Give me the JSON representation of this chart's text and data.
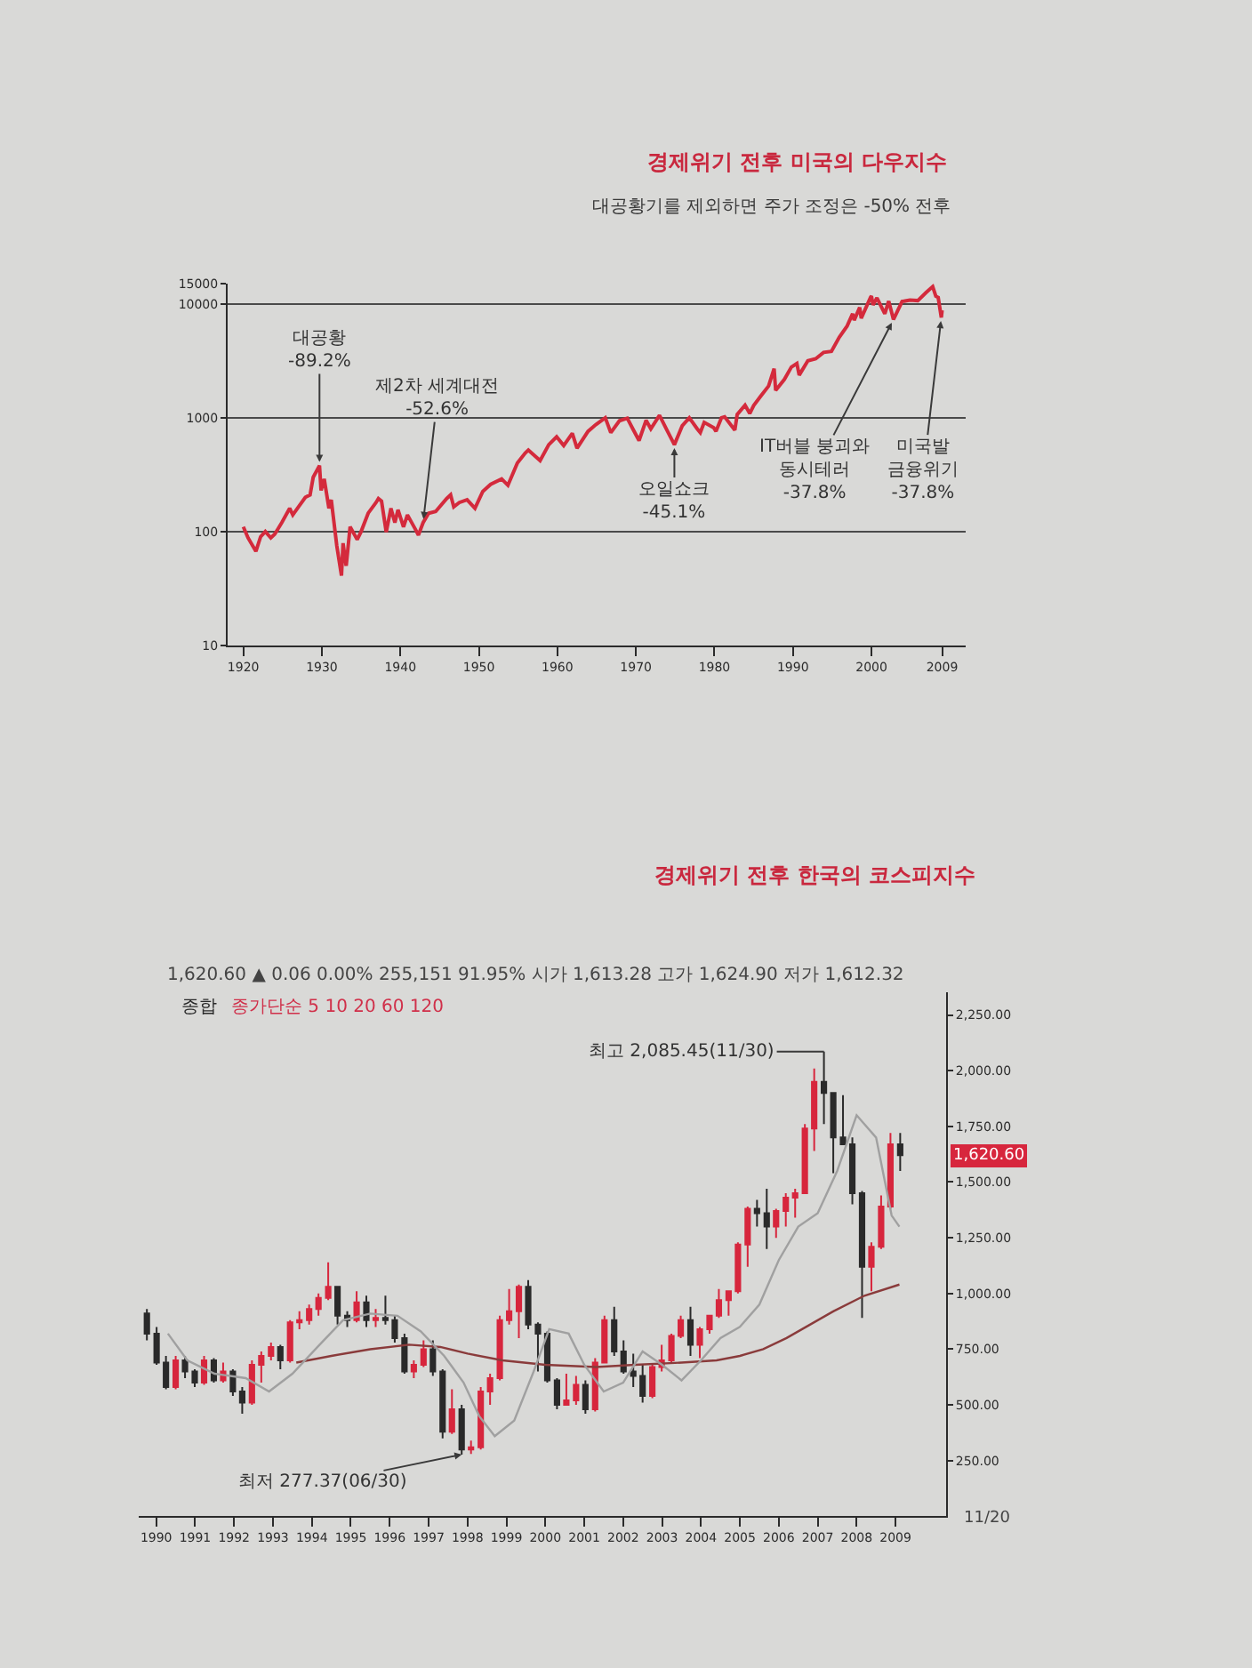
{
  "chart_data": [
    {
      "type": "line",
      "title": "경제위기 전후 미국의 다우지수",
      "subtitle": "대공황기를 제외하면 주가 조정은 -50% 전후",
      "color": "#d42a3c",
      "x": [
        1920.0,
        1920.6,
        1921.6,
        1922.2,
        1922.8,
        1923.5,
        1924.0,
        1924.9,
        1925.9,
        1926.3,
        1926.9,
        1927.9,
        1928.5,
        1928.9,
        1929.7,
        1929.9,
        1930.3,
        1930.9,
        1931.2,
        1931.9,
        1932.5,
        1932.7,
        1933.1,
        1933.6,
        1934.5,
        1935.0,
        1935.9,
        1936.9,
        1937.2,
        1937.6,
        1938.2,
        1938.8,
        1939.3,
        1939.7,
        1940.4,
        1940.9,
        1941.9,
        1942.3,
        1942.9,
        1943.6,
        1944.5,
        1945.9,
        1946.4,
        1946.8,
        1947.5,
        1948.5,
        1949.5,
        1950.5,
        1951.5,
        1952.9,
        1953.7,
        1954.9,
        1955.9,
        1956.3,
        1957.8,
        1958.9,
        1959.9,
        1960.8,
        1961.9,
        1962.5,
        1963.9,
        1964.9,
        1966.1,
        1966.8,
        1967.9,
        1968.9,
        1969.6,
        1970.4,
        1971.3,
        1971.9,
        1973.0,
        1973.9,
        1974.9,
        1975.9,
        1976.8,
        1977.8,
        1978.2,
        1978.7,
        1979.9,
        1980.2,
        1980.9,
        1981.3,
        1982.6,
        1982.9,
        1983.9,
        1984.5,
        1985.0,
        1985.9,
        1986.9,
        1987.6,
        1987.8,
        1988.9,
        1989.8,
        1990.5,
        1990.8,
        1991.9,
        1992.9,
        1993.9,
        1994.9,
        1995.9,
        1996.9,
        1997.6,
        1997.8,
        1998.5,
        1998.7,
        1999.9,
        2000.0,
        2000.2,
        2000.7,
        2001.7,
        2002.2,
        2002.8,
        2003.9,
        2004.9,
        2005.9,
        2006.9,
        2007.8,
        2008.2,
        2008.5,
        2008.9,
        2009.0
      ],
      "values": [
        110,
        88,
        67,
        90,
        100,
        88,
        95,
        120,
        160,
        140,
        160,
        200,
        210,
        300,
        380,
        230,
        290,
        160,
        190,
        75,
        41,
        79,
        50,
        110,
        85,
        100,
        145,
        180,
        195,
        185,
        99,
        160,
        120,
        155,
        110,
        140,
        105,
        93,
        120,
        145,
        150,
        195,
        210,
        165,
        180,
        190,
        160,
        225,
        260,
        290,
        255,
        400,
        490,
        520,
        420,
        580,
        680,
        570,
        730,
        540,
        760,
        870,
        1000,
        740,
        940,
        990,
        800,
        630,
        950,
        800,
        1050,
        790,
        580,
        850,
        1000,
        800,
        740,
        910,
        820,
        760,
        1000,
        1020,
        780,
        1070,
        1290,
        1090,
        1280,
        1550,
        1900,
        2700,
        1740,
        2170,
        2790,
        3000,
        2370,
        3170,
        3300,
        3750,
        3830,
        5100,
        6400,
        8200,
        7200,
        9300,
        7500,
        11500,
        11700,
        9800,
        11300,
        8200,
        10600,
        7300,
        10500,
        10800,
        10700,
        12500,
        14200,
        11700,
        11400,
        7600,
        8800
      ],
      "log": true,
      "xlim": [
        1918,
        2012
      ],
      "xticks": [
        1920,
        1930,
        1940,
        1950,
        1960,
        1970,
        1980,
        1990,
        2000,
        2009
      ],
      "ylim": [
        10,
        15000
      ],
      "yticks": [
        10,
        100,
        1000,
        10000,
        15000
      ],
      "grid": "y",
      "annotations": [
        {
          "text": "대공황\n-89.2%",
          "x": 1929.7,
          "y": 380
        },
        {
          "text": "제2차 세계대전\n-52.6%",
          "x": 1942.9,
          "y": 120
        },
        {
          "text": "오일쇼크\n-45.1%",
          "x": 1974.9,
          "y": 580
        },
        {
          "text": "IT버블 붕괴와\n동시테러\n-37.8%",
          "x": 2002.8,
          "y": 7300
        },
        {
          "text": "미국발\n금융위기\n-37.8%",
          "x": 2008.9,
          "y": 7600
        }
      ]
    },
    {
      "type": "candlestick",
      "title": "경제위기 전후 한국의 코스피지수",
      "series": [
        {
          "type": "candlestick",
          "colors": [
            "#2a2a2a",
            "#2a2a2a",
            "#2a2a2a",
            "#d7263d",
            "#2a2a2a",
            "#2a2a2a",
            "#d7263d",
            "#2a2a2a",
            "#d7263d",
            "#2a2a2a",
            "#2a2a2a",
            "#d7263d",
            "#d7263d",
            "#d7263d",
            "#2a2a2a",
            "#d7263d",
            "#d7263d",
            "#d7263d",
            "#d7263d",
            "#d7263d",
            "#2a2a2a",
            "#2a2a2a",
            "#d7263d",
            "#2a2a2a",
            "#d7263d",
            "#2a2a2a",
            "#2a2a2a",
            "#2a2a2a",
            "#d7263d",
            "#d7263d",
            "#2a2a2a",
            "#2a2a2a",
            "#d7263d",
            "#2a2a2a",
            "#d7263d",
            "#d7263d",
            "#d7263d",
            "#d7263d",
            "#d7263d",
            "#d7263d",
            "#2a2a2a",
            "#2a2a2a",
            "#2a2a2a",
            "#2a2a2a",
            "#d7263d",
            "#d7263d",
            "#2a2a2a",
            "#d7263d",
            "#d7263d",
            "#2a2a2a",
            "#2a2a2a",
            "#2a2a2a",
            "#2a2a2a",
            "#d7263d",
            "#d7263d",
            "#d7263d",
            "#d7263d",
            "#2a2a2a",
            "#d7263d",
            "#d7263d",
            "#d7263d",
            "#d7263d",
            "#d7263d",
            "#d7263d",
            "#2a2a2a",
            "#2a2a2a",
            "#d7263d",
            "#d7263d",
            "#d7263d",
            "#d7263d",
            "#d7263d",
            "#2a2a2a",
            "#2a2a2a",
            "#2a2a2a",
            "#2a2a2a",
            "#2a2a2a",
            "#d7263d",
            "#d7263d",
            "#d7263d",
            "#2a2a2a"
          ],
          "x": [
            1989.76,
            1990.01,
            1990.25,
            1990.5,
            1990.74,
            1990.99,
            1991.23,
            1991.48,
            1991.72,
            1991.97,
            1992.21,
            1992.46,
            1992.7,
            1992.95,
            1993.19,
            1993.44,
            1993.68,
            1993.93,
            1994.17,
            1994.42,
            1994.66,
            1994.91,
            1995.15,
            1995.4,
            1995.64,
            1995.89,
            1996.13,
            1996.38,
            1996.62,
            1996.87,
            1997.11,
            1997.36,
            1997.6,
            1997.85,
            1998.09,
            1998.34,
            1998.58,
            1998.83,
            1999.07,
            1999.32,
            1999.56,
            1999.81,
            2000.05,
            2000.3,
            2000.54,
            2000.79,
            2001.03,
            2001.28,
            2001.52,
            2001.77,
            2002.01,
            2002.26,
            2002.5,
            2002.75,
            2002.99,
            2003.24,
            2003.48,
            2003.73,
            2003.97,
            2004.22,
            2004.46,
            2004.71,
            2004.95,
            2005.2,
            2005.44,
            2005.69,
            2005.93,
            2006.18,
            2006.42,
            2006.67,
            2006.91,
            2007.16,
            2007.4,
            2007.65,
            2007.89,
            2008.14,
            2008.38,
            2008.63,
            2008.87,
            2009.12
          ],
          "ohlc": [
            [
              910,
              930,
              790,
              820
            ],
            [
              820,
              850,
              680,
              690
            ],
            [
              690,
              720,
              570,
              580
            ],
            [
              580,
              720,
              570,
              700
            ],
            [
              700,
              720,
              620,
              650
            ],
            [
              650,
              660,
              580,
              600
            ],
            [
              600,
              720,
              590,
              700
            ],
            [
              700,
              710,
              600,
              610
            ],
            [
              610,
              690,
              600,
              650
            ],
            [
              650,
              660,
              540,
              560
            ],
            [
              560,
              580,
              460,
              510
            ],
            [
              510,
              700,
              500,
              680
            ],
            [
              680,
              740,
              600,
              720
            ],
            [
              720,
              780,
              700,
              760
            ],
            [
              760,
              770,
              660,
              700
            ],
            [
              700,
              880,
              690,
              870
            ],
            [
              870,
              920,
              840,
              880
            ],
            [
              880,
              950,
              860,
              930
            ],
            [
              930,
              1000,
              900,
              980
            ],
            [
              980,
              1140,
              970,
              1030
            ],
            [
              1030,
              1030,
              860,
              900
            ],
            [
              900,
              920,
              850,
              880
            ],
            [
              880,
              1010,
              870,
              960
            ],
            [
              960,
              990,
              850,
              880
            ],
            [
              880,
              930,
              850,
              890
            ],
            [
              890,
              990,
              860,
              880
            ],
            [
              880,
              900,
              780,
              800
            ],
            [
              800,
              820,
              640,
              650
            ],
            [
              650,
              700,
              620,
              680
            ],
            [
              680,
              790,
              670,
              750
            ],
            [
              750,
              790,
              630,
              650
            ],
            [
              650,
              660,
              350,
              380
            ],
            [
              380,
              570,
              370,
              480
            ],
            [
              480,
              500,
              277.37,
              300
            ],
            [
              300,
              340,
              280,
              310
            ],
            [
              310,
              580,
              300,
              560
            ],
            [
              560,
              640,
              500,
              620
            ],
            [
              620,
              900,
              610,
              880
            ],
            [
              880,
              1020,
              860,
              920
            ],
            [
              920,
              1040,
              800,
              1030
            ],
            [
              1030,
              1060,
              840,
              860
            ],
            [
              860,
              870,
              650,
              820
            ],
            [
              820,
              830,
              600,
              610
            ],
            [
              610,
              620,
              480,
              500
            ],
            [
              500,
              640,
              500,
              520
            ],
            [
              520,
              630,
              500,
              590
            ],
            [
              590,
              610,
              460,
              480
            ],
            [
              480,
              710,
              470,
              690
            ],
            [
              690,
              900,
              690,
              880
            ],
            [
              880,
              940,
              720,
              740
            ],
            [
              740,
              790,
              640,
              650
            ],
            [
              650,
              730,
              580,
              630
            ],
            [
              630,
              680,
              510,
              540
            ],
            [
              540,
              680,
              530,
              670
            ],
            [
              670,
              770,
              650,
              700
            ],
            [
              700,
              820,
              690,
              810
            ],
            [
              810,
              900,
              800,
              880
            ],
            [
              880,
              940,
              720,
              770
            ],
            [
              770,
              850,
              710,
              840
            ],
            [
              840,
              900,
              820,
              900
            ],
            [
              900,
              1020,
              890,
              970
            ],
            [
              970,
              1010,
              900,
              1010
            ],
            [
              1010,
              1230,
              1000,
              1220
            ],
            [
              1220,
              1390,
              1120,
              1380
            ],
            [
              1380,
              1420,
              1300,
              1360
            ],
            [
              1360,
              1470,
              1200,
              1300
            ],
            [
              1300,
              1380,
              1250,
              1370
            ],
            [
              1370,
              1450,
              1300,
              1430
            ],
            [
              1430,
              1470,
              1340,
              1450
            ],
            [
              1450,
              1760,
              1450,
              1740
            ],
            [
              1740,
              2010,
              1640,
              1950
            ],
            [
              1950,
              2085.45,
              1760,
              1900
            ],
            [
              1900,
              1900,
              1540,
              1700
            ],
            [
              1700,
              1890,
              1670,
              1670
            ],
            [
              1670,
              1700,
              1400,
              1450
            ],
            [
              1450,
              1460,
              890,
              1120
            ],
            [
              1120,
              1230,
              1010,
              1210
            ],
            [
              1210,
              1440,
              1200,
              1390
            ],
            [
              1390,
              1720,
              1380,
              1670
            ],
            [
              1670,
              1720,
              1550,
              1620.6
            ]
          ]
        },
        {
          "type": "line",
          "color": "#8a3b3b",
          "x": [
            1993.6,
            1994.5,
            1995.5,
            1996.5,
            1997.3,
            1998.0,
            1998.9,
            2000.0,
            2001.3,
            2002.3,
            2003.5,
            2004.4,
            2005.0,
            2005.6,
            2006.2,
            2006.7,
            2007.4,
            2008.2,
            2009.1
          ],
          "values": [
            690,
            720,
            750,
            770,
            760,
            730,
            700,
            680,
            670,
            680,
            690,
            700,
            720,
            750,
            800,
            850,
            920,
            990,
            1040
          ]
        },
        {
          "type": "line",
          "color": "#a0a0a0",
          "x": [
            1990.3,
            1990.8,
            1991.5,
            1992.3,
            1992.9,
            1993.5,
            1994.2,
            1994.8,
            1995.5,
            1996.2,
            1996.8,
            1997.4,
            1997.9,
            1998.3,
            1998.7,
            1999.2,
            1999.7,
            2000.1,
            2000.6,
            2001.0,
            2001.5,
            2002.0,
            2002.5,
            2003.0,
            2003.5,
            2004.0,
            2004.5,
            2005.0,
            2005.5,
            2006.0,
            2006.5,
            2007.0,
            2007.5,
            2008.0,
            2008.5,
            2008.9,
            2009.1
          ],
          "values": [
            820,
            700,
            640,
            620,
            560,
            640,
            770,
            880,
            910,
            900,
            830,
            720,
            600,
            450,
            360,
            430,
            650,
            840,
            820,
            680,
            560,
            600,
            740,
            680,
            610,
            700,
            800,
            850,
            950,
            1150,
            1300,
            1360,
            1550,
            1800,
            1700,
            1350,
            1300
          ]
        }
      ],
      "xlim": [
        1989.55,
        2010.3
      ],
      "xticks": [
        1990,
        1991,
        1992,
        1993,
        1994,
        1995,
        1996,
        1997,
        1998,
        1999,
        2000,
        2001,
        2002,
        2003,
        2004,
        2005,
        2006,
        2007,
        2008,
        2009
      ],
      "ylim": [
        0,
        2350
      ],
      "yticks": [
        {
          "value": 250,
          "label": "250.00"
        },
        {
          "value": 500,
          "label": "500.00"
        },
        {
          "value": 750,
          "label": "750.00"
        },
        {
          "value": 1000,
          "label": "1,000.00"
        },
        {
          "value": 1250,
          "label": "1,250.00"
        },
        {
          "value": 1500,
          "label": "1,500.00"
        },
        {
          "value": 1750,
          "label": "1,750.00"
        },
        {
          "value": 2000,
          "label": "2,000.00"
        },
        {
          "value": 2250,
          "label": "2,250.00"
        }
      ],
      "annotations": [
        "1,620.60 ▲ 0.06 0.00% 255,151 91.95% 시가 1,613.28 고가 1,624.90 저가 1,612.32",
        "종합",
        "종가단순 5 10 20 60 120",
        {
          "text": "최고 2,085.45(11/30)",
          "x": 2007.16,
          "y": 2085.45
        },
        {
          "text": "최저 277.37(06/30)",
          "x": 1997.85,
          "y": 277.37
        },
        "1,620.60",
        "11/20"
      ]
    }
  ]
}
